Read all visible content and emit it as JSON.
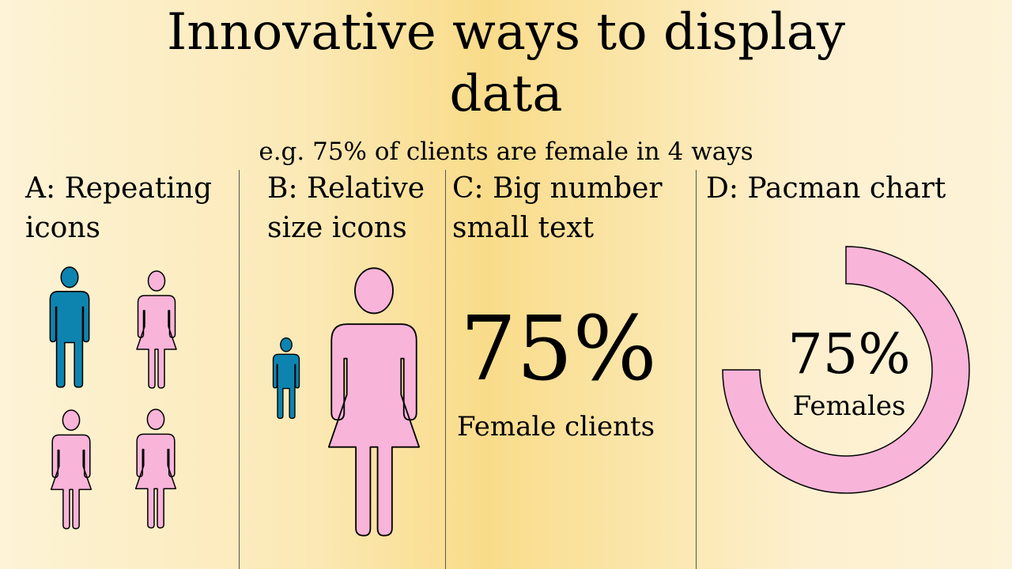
{
  "title": "Innovative ways to display data",
  "subtitle": "e.g. 75% of clients are female in 4 ways",
  "colors": {
    "female": "#f8b4d9",
    "male": "#0d84b0",
    "outline": "#000000"
  },
  "sections": [
    {
      "id": "A",
      "title_line1": "A: Repeating",
      "title_line2": "icons",
      "icons": [
        "male-icon",
        "female-icon",
        "female-icon",
        "female-icon"
      ]
    },
    {
      "id": "B",
      "title_line1": "B: Relative",
      "title_line2": "size icons",
      "icons": [
        "male-icon",
        "female-icon"
      ]
    },
    {
      "id": "C",
      "title_line1": "C: Big number",
      "title_line2": "small text",
      "number": "75%",
      "caption": "Female clients"
    },
    {
      "id": "D",
      "title_line1": "D: Pacman chart",
      "number": "75%",
      "caption": "Females"
    }
  ],
  "chart_data": {
    "type": "pie",
    "categories": [
      "Females"
    ],
    "values": [
      75
    ],
    "total": 100,
    "style": "donut"
  }
}
